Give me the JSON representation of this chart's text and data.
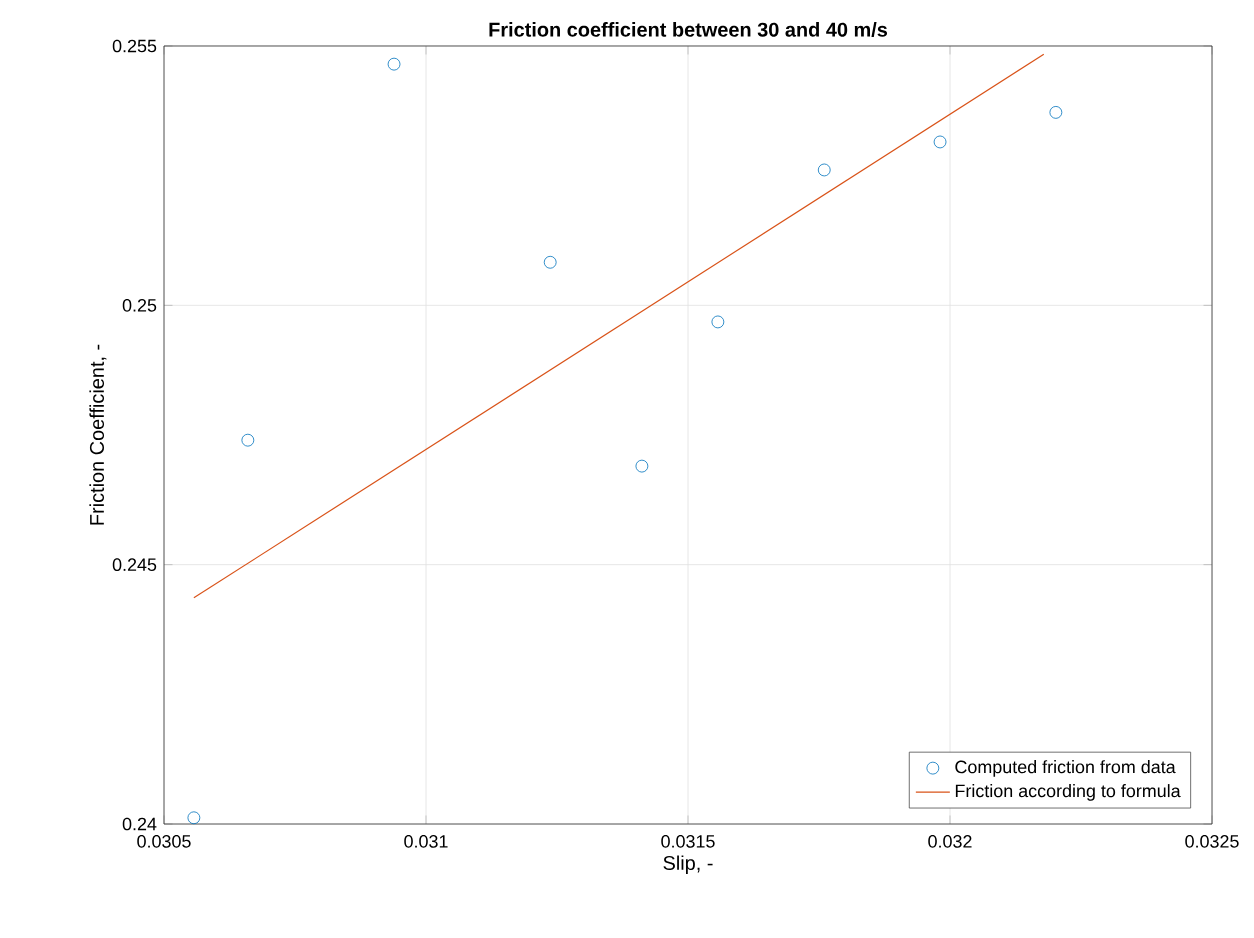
{
  "chart_data": {
    "type": "scatter",
    "title": "**Friction coefficient between 30 and 40 m/s**",
    "xlabel": "Slip, -",
    "ylabel": "Friction Coefficient, -",
    "xlim": [
      0.0305,
      0.0325
    ],
    "xticks": [
      0.0305,
      0.031,
      0.0315,
      0.032,
      0.0325
    ],
    "ylim": [
      0.24,
      0.255
    ],
    "yticks": [
      0.24,
      0.245,
      0.25,
      0.255
    ],
    "grid": true,
    "legend": "bottom right",
    "series": [
      {
        "name": "Computed friction from data",
        "marker": "circle",
        "color": "#0072bd",
        "x": [
          0.030557,
          0.03066,
          0.030939,
          0.031237,
          0.031412,
          0.031557,
          0.03176,
          0.031981,
          0.032202
        ],
        "values": [
          0.24012,
          0.2474,
          0.25465,
          0.25083,
          0.2469,
          0.24968,
          0.25261,
          0.25315,
          0.25372
        ]
      },
      {
        "name": "Friction according to formula",
        "type": "line",
        "color": "#d95319",
        "x": [
          0.030557,
          0.032179
        ],
        "values": [
          0.24436,
          0.25484
        ]
      }
    ]
  }
}
